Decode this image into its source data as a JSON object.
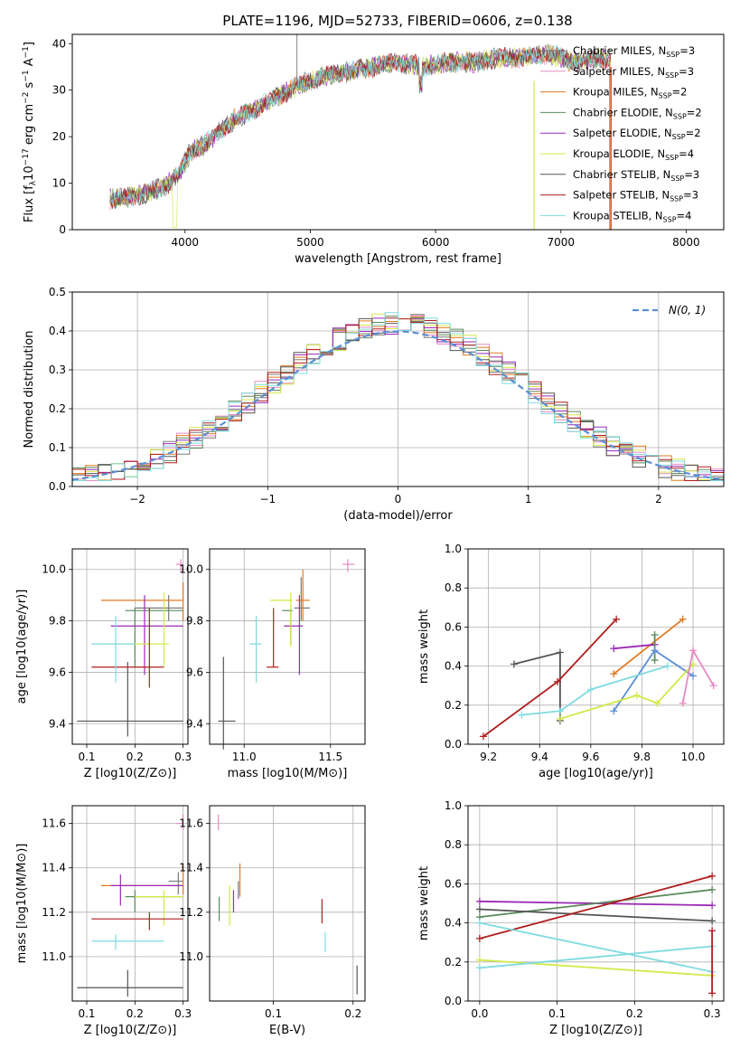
{
  "figure": {
    "title": "PLATE=1196, MJD=52733, FIBERID=0606, z=0.138"
  },
  "colors": {
    "Chabrier MILES": "#7a7a7a",
    "Salpeter MILES": "#e78ac3",
    "Kroupa MILES": "#e07b22",
    "Chabrier ELODIE": "#5a8a5a",
    "Salpeter ELODIE": "#9a2ab5",
    "Kroupa ELODIE": "#d4e84a",
    "Chabrier STELIB": "#555555",
    "Salpeter STELIB": "#b01e1e",
    "Kroupa STELIB": "#7fdbe0",
    "extra_blue": "#5b8fd6",
    "normal_curve": "#5b8fd6"
  },
  "chart_data": [
    {
      "id": "spectrum",
      "type": "line",
      "xlabel": "wavelength [Angstrom, rest frame]",
      "ylabel": "Flux [f_λ 10^-17 erg cm^-2 s^-1 A^-1]",
      "xlim": [
        3100,
        8300
      ],
      "ylim": [
        0,
        42
      ],
      "xticks": [
        "4000",
        "5000",
        "6000",
        "7000",
        "8000"
      ],
      "yticks": [
        "0",
        "10",
        "20",
        "30",
        "40"
      ],
      "legend_position": "top-right",
      "legend": [
        "Chabrier MILES, N_SSP=3",
        "Salpeter MILES, N_SSP=3",
        "Kroupa MILES, N_SSP=2",
        "Chabrier ELODIE, N_SSP=2",
        "Salpeter ELODIE, N_SSP=2",
        "Kroupa ELODIE, N_SSP=4",
        "Chabrier STELIB, N_SSP=3",
        "Salpeter STELIB, N_SSP=3",
        "Kroupa STELIB, N_SSP=4"
      ],
      "series_x": [
        3400,
        3550,
        3700,
        3850,
        3950,
        4050,
        4200,
        4350,
        4500,
        4700,
        4900,
        5100,
        5300,
        5500,
        5700,
        5900,
        6100,
        6300,
        6500,
        6700,
        6900,
        7100,
        7300,
        7400
      ],
      "series_y": [
        6.5,
        7,
        8,
        9.5,
        12,
        17,
        19,
        23,
        25,
        28,
        31,
        33,
        34,
        35,
        36,
        35,
        36,
        36,
        37,
        37,
        38,
        36,
        37,
        36.5
      ]
    },
    {
      "id": "residuals",
      "type": "histogram",
      "xlabel": "(data-model)/error",
      "ylabel": "Normed distribution",
      "xlim": [
        -2.5,
        2.5
      ],
      "ylim": [
        0,
        0.5
      ],
      "xticks": [
        "−2",
        "−1",
        "0",
        "1",
        "2"
      ],
      "yticks": [
        "0.0",
        "0.1",
        "0.2",
        "0.3",
        "0.4",
        "0.5"
      ],
      "legend": [
        "N(0, 1)"
      ],
      "legend_position": "top-right",
      "bin_width": 0.1,
      "bin_start": -2.5
    },
    {
      "id": "Z_age",
      "type": "errorbar",
      "xlabel": "Z [log10(Z/Z⊙)]",
      "ylabel": "age [log10(age/yr)]",
      "xlim": [
        0.07,
        0.31
      ],
      "ylim": [
        9.32,
        10.08
      ],
      "xticks": [
        "0.1",
        "0.2",
        "0.3"
      ],
      "yticks": [
        "9.4",
        "9.6",
        "9.8",
        "10.0"
      ],
      "points": [
        {
          "s": "Chabrier MILES",
          "x": 0.27,
          "y": 9.85,
          "xl": 0.2,
          "xh": 0.3,
          "yl": 9.8,
          "yh": 9.9
        },
        {
          "s": "Salpeter MILES",
          "x": 0.295,
          "y": 10.02,
          "xl": 0.285,
          "xh": 0.3,
          "yl": 9.99,
          "yh": 10.04
        },
        {
          "s": "Kroupa MILES",
          "x": 0.3,
          "y": 9.88,
          "xl": 0.13,
          "xh": 0.3,
          "yl": 9.8,
          "yh": 9.95
        },
        {
          "s": "Chabrier ELODIE",
          "x": 0.2,
          "y": 9.84,
          "xl": 0.18,
          "xh": 0.3,
          "yl": 9.62,
          "yh": 9.85
        },
        {
          "s": "Salpeter ELODIE",
          "x": 0.22,
          "y": 9.78,
          "xl": 0.15,
          "xh": 0.3,
          "yl": 9.59,
          "yh": 9.9
        },
        {
          "s": "Kroupa ELODIE",
          "x": 0.26,
          "y": 9.71,
          "xl": 0.13,
          "xh": 0.27,
          "yl": 9.62,
          "yh": 9.91
        },
        {
          "s": "Chabrier STELIB",
          "x": 0.185,
          "y": 9.41,
          "xl": 0.08,
          "xh": 0.3,
          "yl": 9.35,
          "yh": 9.64
        },
        {
          "s": "Salpeter STELIB",
          "x": 0.23,
          "y": 9.62,
          "xl": 0.11,
          "xh": 0.26,
          "yl": 9.54,
          "yh": 9.85
        },
        {
          "s": "Kroupa STELIB",
          "x": 0.16,
          "y": 9.71,
          "xl": 0.11,
          "xh": 0.2,
          "yl": 9.56,
          "yh": 9.82
        }
      ]
    },
    {
      "id": "mass_age",
      "type": "errorbar",
      "xlabel": "mass [log10(M/M⊙)]",
      "ylabel": "",
      "xlim": [
        10.8,
        11.7
      ],
      "ylim": [
        9.32,
        10.08
      ],
      "xticks": [
        "11.0",
        "11.5"
      ],
      "yticks": [
        "9.4",
        "9.6",
        "9.8",
        "10.0"
      ],
      "points": [
        {
          "s": "Chabrier MILES",
          "x": 11.33,
          "y": 9.85,
          "xl": 11.29,
          "xh": 11.38,
          "yl": 9.8,
          "yh": 9.97
        },
        {
          "s": "Salpeter MILES",
          "x": 11.6,
          "y": 10.02,
          "xl": 11.57,
          "xh": 11.64,
          "yl": 9.99,
          "yh": 10.04
        },
        {
          "s": "Kroupa MILES",
          "x": 11.34,
          "y": 9.88,
          "xl": 11.3,
          "xh": 11.38,
          "yl": 9.8,
          "yh": 10.0
        },
        {
          "s": "Chabrier ELODIE",
          "x": 11.27,
          "y": 9.84,
          "xl": 11.22,
          "xh": 11.28,
          "yl": 9.71,
          "yh": 9.85
        },
        {
          "s": "Salpeter ELODIE",
          "x": 11.32,
          "y": 9.78,
          "xl": 11.23,
          "xh": 11.34,
          "yl": 9.59,
          "yh": 9.9
        },
        {
          "s": "Kroupa ELODIE",
          "x": 11.27,
          "y": 9.88,
          "xl": 11.15,
          "xh": 11.28,
          "yl": 9.7,
          "yh": 9.91
        },
        {
          "s": "Chabrier STELIB",
          "x": 10.88,
          "y": 9.41,
          "xl": 10.85,
          "xh": 10.95,
          "yl": 9.3,
          "yh": 9.66
        },
        {
          "s": "Salpeter STELIB",
          "x": 11.17,
          "y": 9.62,
          "xl": 11.13,
          "xh": 11.2,
          "yl": 9.62,
          "yh": 9.85
        },
        {
          "s": "Kroupa STELIB",
          "x": 11.07,
          "y": 9.71,
          "xl": 11.03,
          "xh": 11.1,
          "yl": 9.56,
          "yh": 9.82
        }
      ]
    },
    {
      "id": "age_weight",
      "type": "line",
      "xlabel": "age [log10(age/yr)]",
      "ylabel": "mass weight",
      "xlim": [
        9.12,
        10.12
      ],
      "ylim": [
        0,
        1
      ],
      "xticks": [
        "9.2",
        "9.4",
        "9.6",
        "9.8",
        "10.0"
      ],
      "yticks": [
        "0.0",
        "0.2",
        "0.4",
        "0.6",
        "0.8",
        "1.0"
      ],
      "series": [
        {
          "s": "Chabrier STELIB",
          "x": [
            9.3,
            9.48,
            9.48
          ],
          "y": [
            0.41,
            0.47,
            0.12
          ]
        },
        {
          "s": "Salpeter STELIB",
          "x": [
            9.18,
            9.47,
            9.7
          ],
          "y": [
            0.04,
            0.32,
            0.64
          ]
        },
        {
          "s": "Kroupa MILES",
          "x": [
            9.69,
            9.96
          ],
          "y": [
            0.36,
            0.64
          ]
        },
        {
          "s": "Salpeter ELODIE",
          "x": [
            9.69,
            9.85
          ],
          "y": [
            0.49,
            0.51
          ]
        },
        {
          "s": "Chabrier ELODIE",
          "x": [
            9.85,
            9.85
          ],
          "y": [
            0.56,
            0.43
          ]
        },
        {
          "s": "extra_blue",
          "x": [
            9.69,
            9.85,
            10.0
          ],
          "y": [
            0.17,
            0.48,
            0.35
          ]
        },
        {
          "s": "Kroupa STELIB",
          "x": [
            9.33,
            9.48,
            9.6,
            9.9
          ],
          "y": [
            0.15,
            0.17,
            0.28,
            0.4
          ]
        },
        {
          "s": "Kroupa ELODIE",
          "x": [
            9.48,
            9.78,
            9.86,
            10.0
          ],
          "y": [
            0.13,
            0.25,
            0.21,
            0.41
          ]
        },
        {
          "s": "Salpeter MILES",
          "x": [
            9.96,
            10.0,
            10.08
          ],
          "y": [
            0.21,
            0.48,
            0.3
          ]
        }
      ]
    },
    {
      "id": "Z_mass",
      "type": "errorbar",
      "xlabel": "Z [log10(Z/Z⊙)]",
      "ylabel": "mass [log10(M/M⊙)]",
      "xlim": [
        0.07,
        0.31
      ],
      "ylim": [
        10.8,
        11.68
      ],
      "xticks": [
        "0.1",
        "0.2",
        "0.3"
      ],
      "yticks": [
        "11.0",
        "11.2",
        "11.4",
        "11.6"
      ],
      "points": [
        {
          "s": "Chabrier MILES",
          "x": 0.29,
          "y": 11.34,
          "xl": 0.27,
          "xh": 0.3,
          "yl": 11.28,
          "yh": 11.38
        },
        {
          "s": "Salpeter MILES",
          "x": 0.3,
          "y": 11.6,
          "xl": 0.285,
          "xh": 0.3,
          "yl": 11.57,
          "yh": 11.64
        },
        {
          "s": "Kroupa MILES",
          "x": 0.3,
          "y": 11.32,
          "xl": 0.13,
          "xh": 0.3,
          "yl": 11.28,
          "yh": 11.42
        },
        {
          "s": "Chabrier ELODIE",
          "x": 0.2,
          "y": 11.27,
          "xl": 0.18,
          "xh": 0.3,
          "yl": 11.2,
          "yh": 11.3
        },
        {
          "s": "Salpeter ELODIE",
          "x": 0.17,
          "y": 11.32,
          "xl": 0.15,
          "xh": 0.3,
          "yl": 11.23,
          "yh": 11.37
        },
        {
          "s": "Kroupa ELODIE",
          "x": 0.26,
          "y": 11.27,
          "xl": 0.2,
          "xh": 0.3,
          "yl": 11.14,
          "yh": 11.3
        },
        {
          "s": "Chabrier STELIB",
          "x": 0.185,
          "y": 10.86,
          "xl": 0.08,
          "xh": 0.3,
          "yl": 10.82,
          "yh": 10.94
        },
        {
          "s": "Salpeter STELIB",
          "x": 0.23,
          "y": 11.17,
          "xl": 0.11,
          "xh": 0.3,
          "yl": 11.12,
          "yh": 11.2
        },
        {
          "s": "Kroupa STELIB",
          "x": 0.16,
          "y": 11.07,
          "xl": 0.11,
          "xh": 0.26,
          "yl": 11.03,
          "yh": 11.1
        }
      ]
    },
    {
      "id": "ebv_mass",
      "type": "errorbar",
      "xlabel": "E(B-V)",
      "ylabel": "",
      "xlim": [
        0.02,
        0.215
      ],
      "ylim": [
        10.8,
        11.68
      ],
      "xticks": [
        "0.1",
        "0.2"
      ],
      "yticks": [
        "11.0",
        "11.2",
        "11.4",
        "11.6"
      ],
      "points": [
        {
          "s": "Salpeter MILES",
          "x": 0.031,
          "y": 11.61,
          "xl": 0.031,
          "xh": 0.031,
          "yl": 11.57,
          "yh": 11.64
        },
        {
          "s": "Chabrier ELODIE",
          "x": 0.032,
          "y": 11.22,
          "xl": 0.032,
          "xh": 0.032,
          "yl": 11.16,
          "yh": 11.27
        },
        {
          "s": "Kroupa ELODIE",
          "x": 0.045,
          "y": 11.22,
          "xl": 0.045,
          "xh": 0.045,
          "yl": 11.14,
          "yh": 11.32
        },
        {
          "s": "Salpeter ELODIE",
          "x": 0.05,
          "y": 11.24,
          "xl": 0.05,
          "xh": 0.05,
          "yl": 11.2,
          "yh": 11.3
        },
        {
          "s": "Chabrier MILES",
          "x": 0.056,
          "y": 11.3,
          "xl": 0.056,
          "xh": 0.056,
          "yl": 11.26,
          "yh": 11.34
        },
        {
          "s": "Kroupa MILES",
          "x": 0.058,
          "y": 11.33,
          "xl": 0.058,
          "xh": 0.058,
          "yl": 11.27,
          "yh": 11.42
        },
        {
          "s": "Salpeter STELIB",
          "x": 0.161,
          "y": 11.2,
          "xl": 0.161,
          "xh": 0.161,
          "yl": 11.15,
          "yh": 11.26
        },
        {
          "s": "Kroupa STELIB",
          "x": 0.165,
          "y": 11.07,
          "xl": 0.165,
          "xh": 0.165,
          "yl": 11.02,
          "yh": 11.11
        },
        {
          "s": "Chabrier STELIB",
          "x": 0.205,
          "y": 10.9,
          "xl": 0.205,
          "xh": 0.205,
          "yl": 10.83,
          "yh": 10.96
        }
      ]
    },
    {
      "id": "Z_weight",
      "type": "line",
      "xlabel": "Z [log10(Z/Z⊙)]",
      "ylabel": "mass weight",
      "xlim": [
        -0.015,
        0.315
      ],
      "ylim": [
        0,
        1
      ],
      "xticks": [
        "0.0",
        "0.1",
        "0.2",
        "0.3"
      ],
      "yticks": [
        "0.0",
        "0.2",
        "0.4",
        "0.6",
        "0.8",
        "1.0"
      ],
      "series": [
        {
          "s": "Salpeter ELODIE",
          "x": [
            0,
            0.3
          ],
          "y": [
            0.51,
            0.49
          ]
        },
        {
          "s": "Chabrier ELODIE",
          "x": [
            0,
            0.3
          ],
          "y": [
            0.43,
            0.57
          ]
        },
        {
          "s": "Chabrier STELIB",
          "x": [
            0,
            0.3
          ],
          "y": [
            0.47,
            0.41
          ]
        },
        {
          "s": "Salpeter STELIB",
          "x": [
            0,
            0.3
          ],
          "y": [
            0.32,
            0.64
          ]
        },
        {
          "s": "Kroupa STELIB",
          "x": [
            0,
            0.3
          ],
          "y": [
            0.4,
            0.15
          ]
        },
        {
          "s": "Kroupa ELODIE",
          "x": [
            0,
            0.3
          ],
          "y": [
            0.21,
            0.13
          ]
        },
        {
          "s": "Kroupa STELIB",
          "x": [
            0,
            0.3
          ],
          "y": [
            0.17,
            0.28
          ]
        },
        {
          "s": "Salpeter STELIB",
          "x": [
            0.3,
            0.3
          ],
          "y": [
            0.04,
            0.36
          ]
        }
      ]
    }
  ]
}
